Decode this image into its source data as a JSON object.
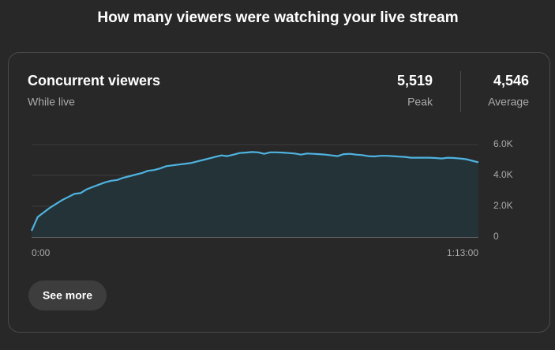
{
  "heading": "How many viewers were watching your live stream",
  "card": {
    "title": "Concurrent viewers",
    "subtitle": "While live",
    "stats": [
      {
        "value": "5,519",
        "label": "Peak"
      },
      {
        "value": "4,546",
        "label": "Average"
      }
    ],
    "button": "See more"
  },
  "chart_data": {
    "type": "area",
    "line_color": "#4fb3e0",
    "fill_color": "#233338",
    "x": [
      0,
      1,
      2,
      3,
      4,
      5,
      6,
      7,
      8,
      9,
      10,
      11,
      12,
      13,
      14,
      15,
      16,
      17,
      18,
      19,
      20,
      21,
      22,
      23,
      24,
      25,
      26,
      27,
      28,
      29,
      30,
      31,
      32,
      33,
      34,
      35,
      36,
      37,
      38,
      39,
      40,
      41,
      42,
      43,
      44,
      45,
      46,
      47,
      48,
      49,
      50,
      51,
      52,
      53,
      54,
      55,
      56,
      57,
      58,
      59,
      60,
      61,
      62,
      63,
      64,
      65,
      66,
      67,
      68,
      69,
      70,
      71,
      72,
      73
    ],
    "values": [
      400,
      1300,
      1600,
      1900,
      2150,
      2400,
      2600,
      2800,
      2850,
      3100,
      3250,
      3400,
      3550,
      3650,
      3700,
      3850,
      3950,
      4050,
      4150,
      4300,
      4350,
      4450,
      4600,
      4650,
      4700,
      4750,
      4800,
      4900,
      5000,
      5100,
      5200,
      5300,
      5250,
      5350,
      5450,
      5480,
      5519,
      5500,
      5400,
      5500,
      5500,
      5480,
      5450,
      5420,
      5350,
      5420,
      5400,
      5380,
      5350,
      5300,
      5250,
      5380,
      5400,
      5350,
      5320,
      5250,
      5230,
      5270,
      5270,
      5250,
      5220,
      5200,
      5150,
      5150,
      5150,
      5150,
      5130,
      5100,
      5150,
      5130,
      5100,
      5050,
      4950,
      4850
    ],
    "xlim": [
      0,
      73
    ],
    "xticks": [
      {
        "value": 0,
        "label": "0:00"
      },
      {
        "value": 73,
        "label": "1:13:00"
      }
    ],
    "ylim": [
      0,
      6000
    ],
    "yticks": [
      0,
      {
        "value": 2000,
        "label": "2.0K"
      },
      {
        "value": 4000,
        "label": "4.0K"
      },
      {
        "value": 6000,
        "label": "6.0K"
      }
    ],
    "grid": true
  }
}
